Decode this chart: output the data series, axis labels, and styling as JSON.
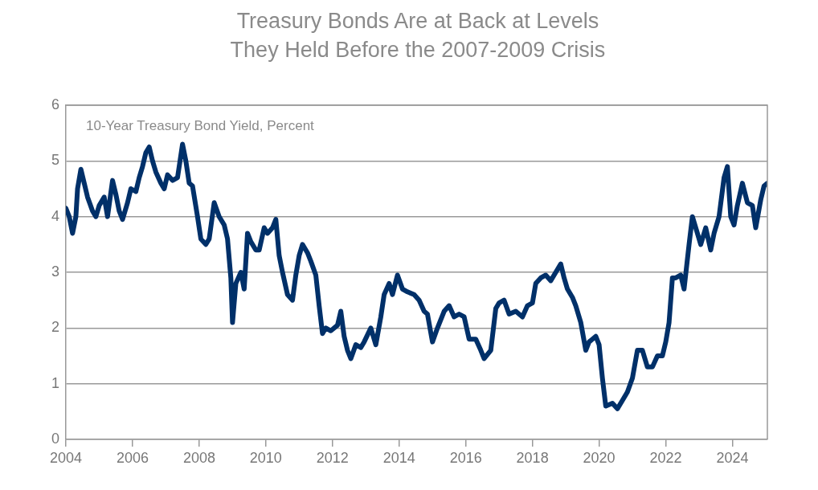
{
  "chart_data": {
    "type": "line",
    "title": "Treasury Bonds Are at Back at Levels They Held Before the 2007-2009 Crisis",
    "ylabel": "10-Year Treasury Bond Yield, Percent",
    "xlim": [
      2004,
      2025.05
    ],
    "xticks": [
      2004,
      2006,
      2008,
      2010,
      2012,
      2014,
      2016,
      2018,
      2020,
      2022,
      2024
    ],
    "ylim": [
      0,
      6
    ],
    "yticks": [
      0,
      1,
      2,
      3,
      4,
      5,
      6
    ],
    "grid": "y",
    "marker": "none",
    "line_style": "solid",
    "series": [
      {
        "color": "#003069",
        "x": [
          2004.0,
          2004.1,
          2004.2,
          2004.3,
          2004.35,
          2004.45,
          2004.55,
          2004.65,
          2004.8,
          2004.9,
          2005.0,
          2005.15,
          2005.25,
          2005.4,
          2005.5,
          2005.6,
          2005.7,
          2005.85,
          2005.95,
          2006.1,
          2006.2,
          2006.3,
          2006.4,
          2006.5,
          2006.6,
          2006.7,
          2006.85,
          2006.95,
          2007.05,
          2007.2,
          2007.35,
          2007.5,
          2007.6,
          2007.7,
          2007.8,
          2007.95,
          2008.05,
          2008.2,
          2008.3,
          2008.45,
          2008.6,
          2008.75,
          2008.85,
          2008.95,
          2009.0,
          2009.1,
          2009.25,
          2009.35,
          2009.45,
          2009.55,
          2009.7,
          2009.8,
          2009.95,
          2010.05,
          2010.2,
          2010.3,
          2010.4,
          2010.5,
          2010.65,
          2010.8,
          2010.9,
          2011.0,
          2011.1,
          2011.25,
          2011.35,
          2011.5,
          2011.6,
          2011.7,
          2011.8,
          2011.95,
          2012.15,
          2012.25,
          2012.35,
          2012.45,
          2012.55,
          2012.7,
          2012.85,
          2012.95,
          2013.15,
          2013.3,
          2013.45,
          2013.55,
          2013.7,
          2013.8,
          2013.95,
          2014.1,
          2014.25,
          2014.45,
          2014.6,
          2014.75,
          2014.85,
          2015.0,
          2015.15,
          2015.35,
          2015.5,
          2015.65,
          2015.8,
          2015.95,
          2016.1,
          2016.3,
          2016.45,
          2016.55,
          2016.75,
          2016.9,
          2017.0,
          2017.15,
          2017.3,
          2017.5,
          2017.7,
          2017.85,
          2018.0,
          2018.1,
          2018.25,
          2018.4,
          2018.55,
          2018.7,
          2018.85,
          2018.95,
          2019.05,
          2019.2,
          2019.3,
          2019.45,
          2019.6,
          2019.7,
          2019.8,
          2019.9,
          2020.0,
          2020.1,
          2020.2,
          2020.4,
          2020.55,
          2020.7,
          2020.85,
          2021.0,
          2021.15,
          2021.3,
          2021.45,
          2021.6,
          2021.75,
          2021.9,
          2022.0,
          2022.1,
          2022.2,
          2022.3,
          2022.45,
          2022.55,
          2022.7,
          2022.8,
          2022.95,
          2023.05,
          2023.2,
          2023.35,
          2023.45,
          2023.6,
          2023.75,
          2023.85,
          2023.95,
          2024.05,
          2024.15,
          2024.3,
          2024.45,
          2024.6,
          2024.7,
          2024.85,
          2024.95,
          2025.05
        ],
        "values": [
          4.15,
          4.0,
          3.7,
          4.0,
          4.5,
          4.85,
          4.6,
          4.35,
          4.1,
          4.0,
          4.2,
          4.35,
          4.0,
          4.65,
          4.4,
          4.1,
          3.95,
          4.25,
          4.5,
          4.45,
          4.7,
          4.9,
          5.15,
          5.25,
          5.0,
          4.8,
          4.6,
          4.5,
          4.75,
          4.65,
          4.7,
          5.3,
          5.0,
          4.6,
          4.55,
          4.0,
          3.6,
          3.5,
          3.6,
          4.25,
          4.0,
          3.85,
          3.6,
          2.9,
          2.1,
          2.8,
          3.0,
          2.7,
          3.7,
          3.55,
          3.4,
          3.4,
          3.8,
          3.7,
          3.8,
          3.95,
          3.3,
          3.0,
          2.6,
          2.5,
          2.95,
          3.3,
          3.5,
          3.35,
          3.2,
          2.95,
          2.4,
          1.9,
          2.0,
          1.95,
          2.05,
          2.3,
          1.85,
          1.6,
          1.45,
          1.7,
          1.65,
          1.75,
          2.0,
          1.7,
          2.2,
          2.6,
          2.8,
          2.6,
          2.95,
          2.7,
          2.65,
          2.6,
          2.5,
          2.3,
          2.25,
          1.75,
          2.0,
          2.3,
          2.4,
          2.2,
          2.25,
          2.2,
          1.8,
          1.8,
          1.6,
          1.45,
          1.6,
          2.35,
          2.45,
          2.5,
          2.25,
          2.3,
          2.2,
          2.4,
          2.45,
          2.8,
          2.9,
          2.95,
          2.85,
          3.0,
          3.15,
          2.9,
          2.7,
          2.55,
          2.4,
          2.1,
          1.6,
          1.75,
          1.8,
          1.85,
          1.7,
          1.1,
          0.6,
          0.65,
          0.55,
          0.7,
          0.85,
          1.1,
          1.6,
          1.6,
          1.3,
          1.3,
          1.5,
          1.5,
          1.75,
          2.1,
          2.9,
          2.9,
          2.95,
          2.7,
          3.5,
          4.0,
          3.7,
          3.5,
          3.8,
          3.4,
          3.7,
          4.0,
          4.7,
          4.9,
          4.0,
          3.85,
          4.2,
          4.6,
          4.25,
          4.2,
          3.8,
          4.3,
          4.55,
          4.6
        ]
      }
    ]
  }
}
